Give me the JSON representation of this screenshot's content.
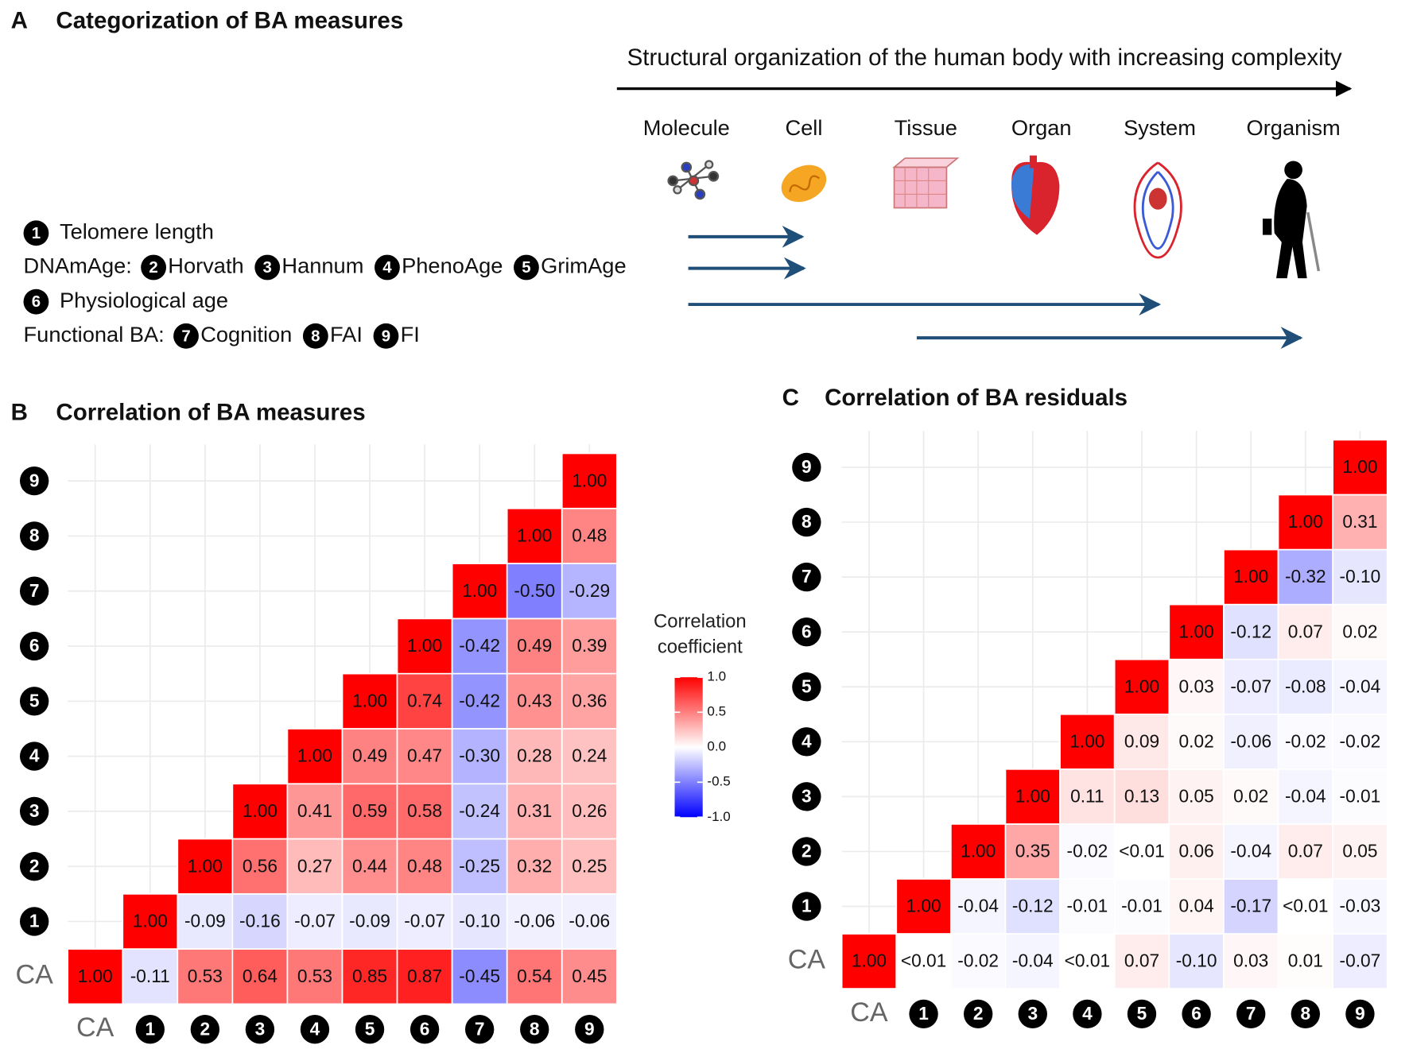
{
  "panel_a": {
    "letter": "A",
    "title": "Categorization of BA measures",
    "axis_label": "Structural organization of the human body with increasing complexity",
    "levels": [
      "Molecule",
      "Cell",
      "Tissue",
      "Organ",
      "System",
      "Organism"
    ],
    "rows": [
      {
        "items": [
          {
            "marker": "1",
            "label": "Telomere length"
          }
        ]
      },
      {
        "prefix": "DNAmAge:",
        "items": [
          {
            "marker": "2",
            "label": "Horvath"
          },
          {
            "marker": "3",
            "label": "Hannum"
          },
          {
            "marker": "4",
            "label": "PhenoAge"
          },
          {
            "marker": "5",
            "label": "GrimAge"
          }
        ]
      },
      {
        "items": [
          {
            "marker": "6",
            "label": "Physiological age"
          }
        ]
      },
      {
        "prefix": "Functional BA:",
        "items": [
          {
            "marker": "7",
            "label": "Cognition"
          },
          {
            "marker": "8",
            "label": "FAI"
          },
          {
            "marker": "9",
            "label": "FI"
          }
        ]
      }
    ]
  },
  "chart_data": [
    {
      "type": "heatmap",
      "letter": "B",
      "title": "Correlation of BA measures",
      "categories": [
        "CA",
        "1",
        "2",
        "3",
        "4",
        "5",
        "6",
        "7",
        "8",
        "9"
      ],
      "clim": [
        -1,
        1
      ],
      "colors": {
        "low": "#0000ff",
        "mid": "#ffffff",
        "high": "#ff0000"
      },
      "values": [
        [
          1,
          -0.11,
          0.53,
          0.64,
          0.53,
          0.85,
          0.87,
          -0.45,
          0.54,
          0.45
        ],
        [
          null,
          1,
          -0.09,
          -0.16,
          -0.07,
          -0.09,
          -0.07,
          -0.1,
          -0.06,
          -0.06
        ],
        [
          null,
          null,
          1,
          0.56,
          0.27,
          0.44,
          0.48,
          -0.25,
          0.32,
          0.25
        ],
        [
          null,
          null,
          null,
          1,
          0.41,
          0.59,
          0.58,
          -0.24,
          0.31,
          0.26
        ],
        [
          null,
          null,
          null,
          null,
          1,
          0.49,
          0.47,
          -0.3,
          0.28,
          0.24
        ],
        [
          null,
          null,
          null,
          null,
          null,
          1,
          0.74,
          -0.42,
          0.43,
          0.36
        ],
        [
          null,
          null,
          null,
          null,
          null,
          null,
          1,
          -0.42,
          0.49,
          0.39
        ],
        [
          null,
          null,
          null,
          null,
          null,
          null,
          null,
          1,
          -0.5,
          -0.29
        ],
        [
          null,
          null,
          null,
          null,
          null,
          null,
          null,
          null,
          1,
          0.48
        ],
        [
          null,
          null,
          null,
          null,
          null,
          null,
          null,
          null,
          null,
          1
        ]
      ],
      "value_labels": [
        [
          "1.00",
          "-0.11",
          "0.53",
          "0.64",
          "0.53",
          "0.85",
          "0.87",
          "-0.45",
          "0.54",
          "0.45"
        ],
        [
          null,
          "1.00",
          "-0.09",
          "-0.16",
          "-0.07",
          "-0.09",
          "-0.07",
          "-0.10",
          "-0.06",
          "-0.06"
        ],
        [
          null,
          null,
          "1.00",
          "0.56",
          "0.27",
          "0.44",
          "0.48",
          "-0.25",
          "0.32",
          "0.25"
        ],
        [
          null,
          null,
          null,
          "1.00",
          "0.41",
          "0.59",
          "0.58",
          "-0.24",
          "0.31",
          "0.26"
        ],
        [
          null,
          null,
          null,
          null,
          "1.00",
          "0.49",
          "0.47",
          "-0.30",
          "0.28",
          "0.24"
        ],
        [
          null,
          null,
          null,
          null,
          null,
          "1.00",
          "0.74",
          "-0.42",
          "0.43",
          "0.36"
        ],
        [
          null,
          null,
          null,
          null,
          null,
          null,
          "1.00",
          "-0.42",
          "0.49",
          "0.39"
        ],
        [
          null,
          null,
          null,
          null,
          null,
          null,
          null,
          "1.00",
          "-0.50",
          "-0.29"
        ],
        [
          null,
          null,
          null,
          null,
          null,
          null,
          null,
          null,
          "1.00",
          "0.48"
        ],
        [
          null,
          null,
          null,
          null,
          null,
          null,
          null,
          null,
          null,
          "1.00"
        ]
      ],
      "legend": {
        "title": "Correlation coefficient",
        "ticks": [
          {
            "value": 1,
            "label": "1.0"
          },
          0.5,
          {
            "value": 0,
            "label": "0.0"
          },
          -0.5,
          {
            "value": -1,
            "label": "-1.0"
          }
        ]
      }
    },
    {
      "type": "heatmap",
      "letter": "C",
      "title": "Correlation of BA residuals",
      "categories": [
        "CA",
        "1",
        "2",
        "3",
        "4",
        "5",
        "6",
        "7",
        "8",
        "9"
      ],
      "clim": [
        -1,
        1
      ],
      "colors": {
        "low": "#0000ff",
        "mid": "#ffffff",
        "high": "#ff0000"
      },
      "values": [
        [
          1,
          0,
          -0.02,
          -0.04,
          0,
          0.07,
          -0.1,
          0.03,
          0.01,
          -0.07
        ],
        [
          null,
          1,
          -0.04,
          -0.12,
          -0.01,
          -0.01,
          0.04,
          -0.17,
          0,
          -0.03
        ],
        [
          null,
          null,
          1,
          0.35,
          -0.02,
          0,
          0.06,
          -0.04,
          0.07,
          0.05
        ],
        [
          null,
          null,
          null,
          1,
          0.11,
          0.13,
          0.05,
          0.02,
          -0.04,
          -0.01
        ],
        [
          null,
          null,
          null,
          null,
          1,
          0.09,
          0.02,
          -0.06,
          -0.02,
          -0.02
        ],
        [
          null,
          null,
          null,
          null,
          null,
          1,
          0.03,
          -0.07,
          -0.08,
          -0.04
        ],
        [
          null,
          null,
          null,
          null,
          null,
          null,
          1,
          -0.12,
          0.07,
          0.02
        ],
        [
          null,
          null,
          null,
          null,
          null,
          null,
          null,
          1,
          -0.32,
          -0.1
        ],
        [
          null,
          null,
          null,
          null,
          null,
          null,
          null,
          null,
          1,
          0.31
        ],
        [
          null,
          null,
          null,
          null,
          null,
          null,
          null,
          null,
          null,
          1
        ]
      ],
      "value_labels": [
        [
          "1.00",
          "<0.01",
          "-0.02",
          "-0.04",
          "<0.01",
          "0.07",
          "-0.10",
          "0.03",
          "0.01",
          "-0.07"
        ],
        [
          null,
          "1.00",
          "-0.04",
          "-0.12",
          "-0.01",
          "-0.01",
          "0.04",
          "-0.17",
          "<0.01",
          "-0.03"
        ],
        [
          null,
          null,
          "1.00",
          "0.35",
          "-0.02",
          "<0.01",
          "0.06",
          "-0.04",
          "0.07",
          "0.05"
        ],
        [
          null,
          null,
          null,
          "1.00",
          "0.11",
          "0.13",
          "0.05",
          "0.02",
          "-0.04",
          "-0.01"
        ],
        [
          null,
          null,
          null,
          null,
          "1.00",
          "0.09",
          "0.02",
          "-0.06",
          "-0.02",
          "-0.02"
        ],
        [
          null,
          null,
          null,
          null,
          null,
          "1.00",
          "0.03",
          "-0.07",
          "-0.08",
          "-0.04"
        ],
        [
          null,
          null,
          null,
          null,
          null,
          null,
          "1.00",
          "-0.12",
          "0.07",
          "0.02"
        ],
        [
          null,
          null,
          null,
          null,
          null,
          null,
          null,
          "1.00",
          "-0.32",
          "-0.10"
        ],
        [
          null,
          null,
          null,
          null,
          null,
          null,
          null,
          null,
          "1.00",
          "0.31"
        ],
        [
          null,
          null,
          null,
          null,
          null,
          null,
          null,
          null,
          null,
          "1.00"
        ]
      ]
    }
  ]
}
